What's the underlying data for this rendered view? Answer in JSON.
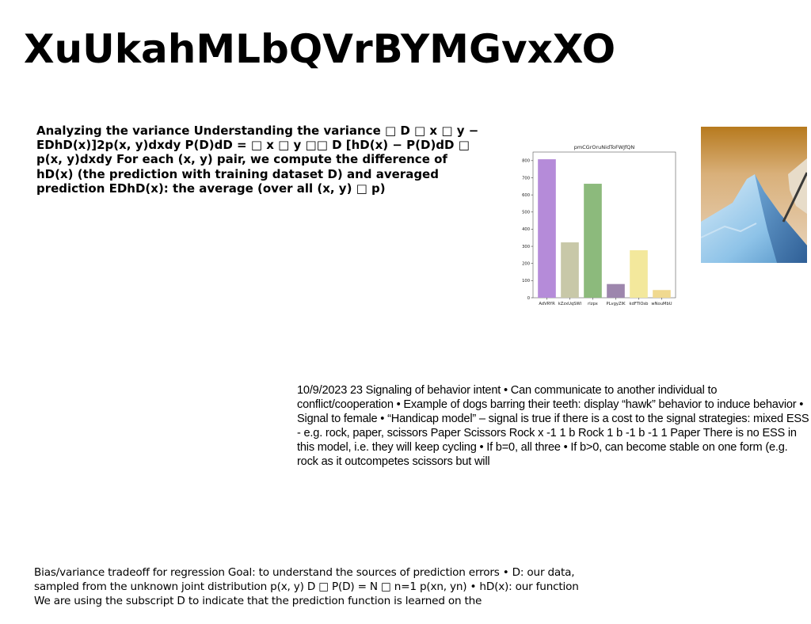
{
  "page": {
    "title": "XuUkahMLbQVrBYMGvxXO",
    "text_block_1": "Analyzing the variance Understanding the variance □ D □ x □ y − EDhD(x)]2p(x, y)dxdy P(D)dD = □ x □ y □□ D [hD(x) − P(D)dD □ p(x, y)dxdy For each (x, y) pair, we compute the difference of hD(x) (the prediction with training dataset D) and averaged prediction EDhD(x): the average (over all (x, y) □ p)",
    "text_block_2": "10/9/2023 23 Signaling of behavior intent • Can communicate to another individual to conflict/cooperation • Example of dogs barring their teeth: display “hawk” behavior to induce behavior • Signal to female • “Handicap model” – signal is true if there is a cost to the signal strategies: mixed ESS - e.g. rock, paper, scissors Paper Scissors Rock x -1 1 b Rock 1 b -1 b -1 1 Paper There is no ESS in this model, i.e. they will keep cycling • If b=0, all three • If b>0, can become stable on one form (e.g. rock as it outcompetes scissors but will",
    "text_block_3": "Bias/variance tradeoff for regression Goal: to understand the sources of prediction errors • D: our data, sampled from the unknown joint distribution p(x, y) D □ P(D) = N □ n=1 p(xn, yn) • hD(x): our function We are using the subscript D to indicate that the prediction function is learned on the"
  },
  "chart_data": {
    "type": "bar",
    "title": "pmCGrOruNidToFWJfQN",
    "categories": [
      "AdVRYR",
      "kZzxUqSWI",
      "rlzpx",
      "PLvgyZIK",
      "kdFTlOsb",
      "wNouMbU"
    ],
    "values": [
      808,
      323,
      665,
      80,
      277,
      45
    ],
    "colors": [
      "#b58bd9",
      "#c8c8a8",
      "#8cba7c",
      "#9d86ad",
      "#f3e89c",
      "#f0d990"
    ],
    "ylim": [
      0,
      850
    ],
    "yticks": [
      0,
      100,
      200,
      300,
      400,
      500,
      600,
      700,
      800
    ],
    "xlabel": "",
    "ylabel": ""
  }
}
